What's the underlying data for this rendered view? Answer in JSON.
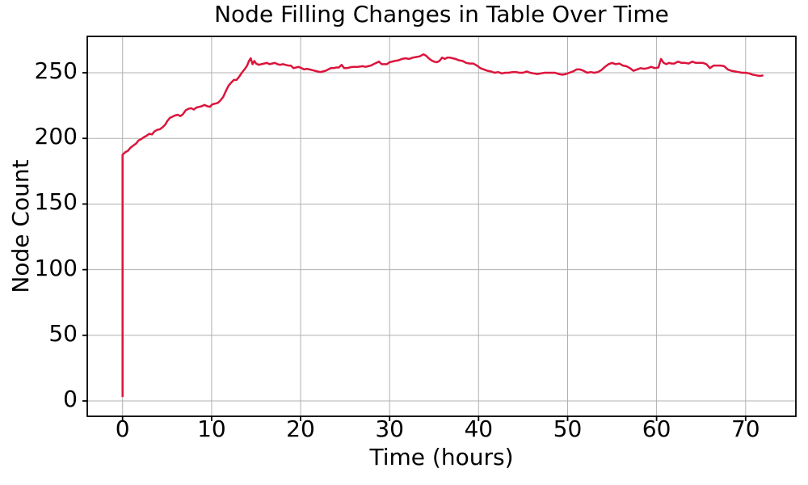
{
  "chart_data": {
    "type": "line",
    "title": "Node Filling Changes in Table Over Time",
    "xlabel": "Time (hours)",
    "ylabel": "Node Count",
    "xticks": [
      0,
      10,
      20,
      30,
      40,
      50,
      60,
      70
    ],
    "yticks": [
      0,
      50,
      100,
      150,
      200,
      250
    ],
    "xlim": [
      -3.97,
      75.65
    ],
    "ylim": [
      -11.7,
      277.7
    ],
    "grid": true,
    "legend_position": "none",
    "line_color": "#DC143C",
    "grid_color": "#b0b0b0",
    "axis_color": "#000000",
    "background_color": "#ffffff",
    "series": [
      {
        "name": "Node Count",
        "points": [
          [
            0,
            3
          ],
          [
            0,
            187.5
          ],
          [
            0.3,
            189.5
          ],
          [
            0.6,
            190.5
          ],
          [
            0.9,
            193
          ],
          [
            1.2,
            194.5
          ],
          [
            1.5,
            196
          ],
          [
            1.8,
            198.5
          ],
          [
            2.1,
            199.5
          ],
          [
            2.4,
            201
          ],
          [
            2.7,
            202
          ],
          [
            3,
            203.5
          ],
          [
            3.3,
            203
          ],
          [
            3.6,
            205.5
          ],
          [
            3.9,
            206.5
          ],
          [
            4.2,
            207
          ],
          [
            4.5,
            208.5
          ],
          [
            4.8,
            210.5
          ],
          [
            5,
            213
          ],
          [
            5.3,
            215.5
          ],
          [
            5.6,
            216.5
          ],
          [
            5.9,
            217.5
          ],
          [
            6.2,
            218
          ],
          [
            6.5,
            217
          ],
          [
            6.8,
            218.5
          ],
          [
            7.1,
            221.5
          ],
          [
            7.4,
            222.5
          ],
          [
            7.7,
            223
          ],
          [
            8,
            222
          ],
          [
            8.3,
            223.5
          ],
          [
            8.6,
            224
          ],
          [
            8.9,
            224.5
          ],
          [
            9.2,
            225.5
          ],
          [
            9.5,
            224.5
          ],
          [
            9.8,
            224
          ],
          [
            10.1,
            226
          ],
          [
            10.4,
            226.5
          ],
          [
            10.7,
            227
          ],
          [
            11,
            229
          ],
          [
            11.3,
            231.5
          ],
          [
            11.6,
            236
          ],
          [
            11.9,
            240
          ],
          [
            12.2,
            242.5
          ],
          [
            12.5,
            244.5
          ],
          [
            12.8,
            244.5
          ],
          [
            13.1,
            247
          ],
          [
            13.4,
            250
          ],
          [
            13.7,
            252.5
          ],
          [
            14,
            255.5
          ],
          [
            14.2,
            259
          ],
          [
            14.4,
            261
          ],
          [
            14.6,
            256.5
          ],
          [
            14.8,
            259
          ],
          [
            15,
            257
          ],
          [
            15.3,
            256
          ],
          [
            15.6,
            256.5
          ],
          [
            15.9,
            257
          ],
          [
            16.2,
            257.5
          ],
          [
            16.5,
            256.5
          ],
          [
            16.8,
            257
          ],
          [
            17.1,
            257.5
          ],
          [
            17.4,
            256.5
          ],
          [
            17.7,
            256
          ],
          [
            18,
            256.5
          ],
          [
            18.3,
            256
          ],
          [
            18.6,
            255.5
          ],
          [
            18.9,
            255.5
          ],
          [
            19.2,
            253.5
          ],
          [
            19.5,
            254
          ],
          [
            19.8,
            254.5
          ],
          [
            20.1,
            253.5
          ],
          [
            20.4,
            252.5
          ],
          [
            20.7,
            253
          ],
          [
            21,
            252.5
          ],
          [
            21.3,
            252
          ],
          [
            21.6,
            251.5
          ],
          [
            21.9,
            251
          ],
          [
            22.2,
            250.5
          ],
          [
            22.5,
            251
          ],
          [
            22.8,
            251.5
          ],
          [
            23.1,
            252.5
          ],
          [
            23.4,
            253.5
          ],
          [
            23.7,
            253.5
          ],
          [
            24,
            254
          ],
          [
            24.3,
            254
          ],
          [
            24.6,
            256
          ],
          [
            24.9,
            253.5
          ],
          [
            25.2,
            253.5
          ],
          [
            25.5,
            254
          ],
          [
            25.8,
            254.5
          ],
          [
            26.1,
            254.5
          ],
          [
            26.4,
            254.5
          ],
          [
            27,
            255
          ],
          [
            27.3,
            254.5
          ],
          [
            27.6,
            255
          ],
          [
            27.9,
            255.5
          ],
          [
            28.2,
            256.5
          ],
          [
            28.5,
            257.5
          ],
          [
            28.8,
            258.5
          ],
          [
            29.1,
            256.5
          ],
          [
            29.4,
            256.5
          ],
          [
            29.7,
            256.5
          ],
          [
            30,
            258
          ],
          [
            30.3,
            258.5
          ],
          [
            30.6,
            259
          ],
          [
            31,
            259.5
          ],
          [
            31.4,
            260.5
          ],
          [
            31.8,
            261
          ],
          [
            32.2,
            260.5
          ],
          [
            32.6,
            261.5
          ],
          [
            33,
            262
          ],
          [
            33.4,
            262.5
          ],
          [
            33.8,
            264
          ],
          [
            34.1,
            263
          ],
          [
            34.4,
            261
          ],
          [
            34.7,
            259.5
          ],
          [
            35,
            258.5
          ],
          [
            35.3,
            258
          ],
          [
            35.6,
            259
          ],
          [
            35.9,
            261.5
          ],
          [
            36.2,
            260.5
          ],
          [
            36.5,
            261.5
          ],
          [
            36.8,
            261.5
          ],
          [
            37.1,
            261
          ],
          [
            37.4,
            260.5
          ],
          [
            37.8,
            259.5
          ],
          [
            38.2,
            259
          ],
          [
            38.6,
            257.5
          ],
          [
            39,
            257
          ],
          [
            39.4,
            257
          ],
          [
            39.8,
            255.5
          ],
          [
            40.2,
            253.5
          ],
          [
            40.6,
            252.5
          ],
          [
            41,
            251.5
          ],
          [
            41.4,
            251
          ],
          [
            41.8,
            250
          ],
          [
            42.2,
            250.5
          ],
          [
            42.6,
            249.5
          ],
          [
            43,
            250
          ],
          [
            43.4,
            250
          ],
          [
            43.8,
            250.5
          ],
          [
            44.2,
            250.5
          ],
          [
            44.6,
            250
          ],
          [
            45,
            250
          ],
          [
            45.4,
            251
          ],
          [
            45.8,
            250
          ],
          [
            46.2,
            249.5
          ],
          [
            46.6,
            249
          ],
          [
            47,
            249.5
          ],
          [
            47.4,
            250
          ],
          [
            47.8,
            250
          ],
          [
            48.2,
            250
          ],
          [
            48.6,
            250
          ],
          [
            49,
            249
          ],
          [
            49.4,
            248.5
          ],
          [
            49.8,
            249
          ],
          [
            50.2,
            250
          ],
          [
            50.6,
            251
          ],
          [
            51,
            252.5
          ],
          [
            51.4,
            252.5
          ],
          [
            51.8,
            251.5
          ],
          [
            52.2,
            250
          ],
          [
            52.6,
            250.5
          ],
          [
            53,
            250
          ],
          [
            53.4,
            250.5
          ],
          [
            53.8,
            252
          ],
          [
            54.2,
            254.5
          ],
          [
            54.6,
            256.5
          ],
          [
            55,
            257.5
          ],
          [
            55.4,
            256.5
          ],
          [
            55.8,
            257
          ],
          [
            56.2,
            255.5
          ],
          [
            56.6,
            255
          ],
          [
            57,
            253.5
          ],
          [
            57.4,
            251.5
          ],
          [
            57.8,
            252.5
          ],
          [
            58.2,
            253.5
          ],
          [
            58.6,
            253
          ],
          [
            59,
            253.5
          ],
          [
            59.4,
            254.5
          ],
          [
            59.8,
            253.5
          ],
          [
            60.2,
            254
          ],
          [
            60.5,
            260.5
          ],
          [
            60.8,
            257.5
          ],
          [
            61.1,
            256.5
          ],
          [
            61.4,
            257.5
          ],
          [
            61.7,
            257
          ],
          [
            62,
            257
          ],
          [
            62.4,
            258.5
          ],
          [
            62.8,
            257.5
          ],
          [
            63.2,
            257.5
          ],
          [
            63.6,
            257
          ],
          [
            64,
            258.5
          ],
          [
            64.4,
            257.5
          ],
          [
            64.8,
            257.5
          ],
          [
            65.2,
            257.5
          ],
          [
            65.6,
            256.5
          ],
          [
            66,
            253.5
          ],
          [
            66.4,
            255.5
          ],
          [
            66.8,
            255.5
          ],
          [
            67.2,
            255.5
          ],
          [
            67.6,
            255
          ],
          [
            68,
            252.5
          ],
          [
            68.4,
            251.5
          ],
          [
            68.8,
            251
          ],
          [
            69.2,
            250.5
          ],
          [
            69.6,
            250
          ],
          [
            70,
            250
          ],
          [
            70.4,
            249.5
          ],
          [
            70.8,
            248.5
          ],
          [
            71.2,
            248
          ],
          [
            71.6,
            247.5
          ],
          [
            72,
            248
          ]
        ]
      }
    ]
  }
}
